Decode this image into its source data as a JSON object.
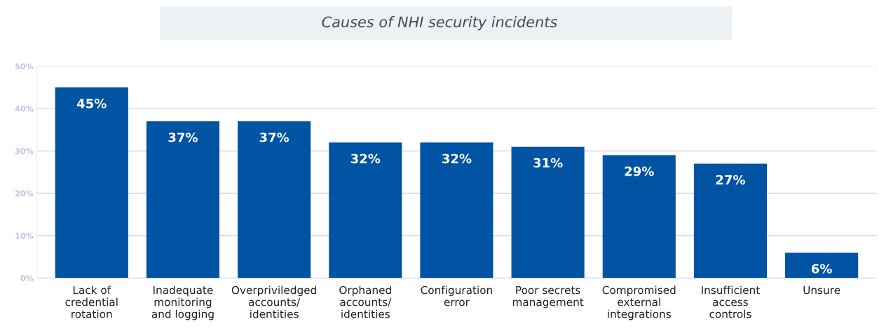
{
  "chart_data": {
    "type": "bar",
    "title": "Causes of NHI security incidents",
    "categories": [
      "Lack of\ncredential\nrotation",
      "Inadequate\nmonitoring\nand logging",
      "Overpriviledged\naccounts/\nidentities",
      "Orphaned\naccounts/\nidentities",
      "Configuration\nerror",
      "Poor secrets\nmanagement",
      "Compromised\nexternal\nintegrations",
      "Insufficient\naccess\ncontrols",
      "Unsure"
    ],
    "values": [
      45,
      37,
      37,
      32,
      32,
      31,
      29,
      27,
      6
    ],
    "value_labels": [
      "45%",
      "37%",
      "37%",
      "32%",
      "32%",
      "31%",
      "29%",
      "27%",
      "6%"
    ],
    "color": "#0054a3",
    "ylim": [
      0,
      50
    ],
    "yticks": [
      {
        "value": 0,
        "label": "0%"
      },
      {
        "value": 10,
        "label": "10%"
      },
      {
        "value": 20,
        "label": "20%"
      },
      {
        "value": 30,
        "label": "30%"
      },
      {
        "value": 40,
        "label": "40%"
      },
      {
        "value": 50,
        "label": "50%"
      }
    ],
    "grid": "y"
  }
}
